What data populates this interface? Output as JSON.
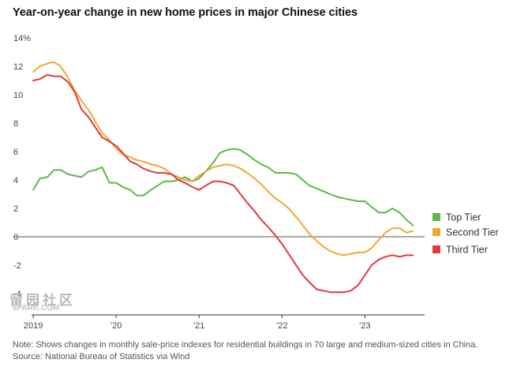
{
  "chart_data": {
    "type": "line",
    "title": "Year-on-year change in new home prices in major Chinese cities",
    "x_tick_labels": [
      "2019",
      "'20",
      "'21",
      "'22",
      "'23"
    ],
    "x_tick_values": [
      2019.0,
      2020.0,
      2021.0,
      2022.0,
      2023.0
    ],
    "xlim": [
      2018.98,
      2023.72
    ],
    "y_tick_labels": [
      "14%",
      "12",
      "10",
      "8",
      "6",
      "4",
      "2",
      "0",
      "-2",
      "-4"
    ],
    "y_tick_values": [
      14,
      12,
      10,
      8,
      6,
      4,
      2,
      0,
      -2,
      -4
    ],
    "ylim": [
      -5.5,
      14
    ],
    "grid": false,
    "legend_position": "right",
    "series": [
      {
        "name": "Top Tier",
        "color": "#5db84b",
        "x": [
          2019.0,
          2019.08,
          2019.17,
          2019.25,
          2019.33,
          2019.42,
          2019.5,
          2019.58,
          2019.67,
          2019.75,
          2019.83,
          2019.92,
          2020.0,
          2020.08,
          2020.17,
          2020.25,
          2020.33,
          2020.42,
          2020.5,
          2020.58,
          2020.67,
          2020.75,
          2020.83,
          2020.92,
          2021.0,
          2021.08,
          2021.17,
          2021.25,
          2021.33,
          2021.42,
          2021.5,
          2021.58,
          2021.67,
          2021.75,
          2021.83,
          2021.92,
          2022.0,
          2022.08,
          2022.17,
          2022.25,
          2022.33,
          2022.42,
          2022.5,
          2022.58,
          2022.67,
          2022.75,
          2022.83,
          2022.92,
          2023.0,
          2023.08,
          2023.17,
          2023.25,
          2023.33,
          2023.42,
          2023.5,
          2023.58
        ],
        "values": [
          3.3,
          4.1,
          4.2,
          4.7,
          4.7,
          4.4,
          4.3,
          4.2,
          4.6,
          4.7,
          4.9,
          3.8,
          3.8,
          3.5,
          3.3,
          2.9,
          2.9,
          3.3,
          3.6,
          3.9,
          3.9,
          4.0,
          4.2,
          3.9,
          4.1,
          4.6,
          5.2,
          5.9,
          6.1,
          6.2,
          6.1,
          5.8,
          5.4,
          5.1,
          4.9,
          4.5,
          4.5,
          4.5,
          4.4,
          4.0,
          3.6,
          3.4,
          3.2,
          3.0,
          2.8,
          2.7,
          2.6,
          2.5,
          2.5,
          2.1,
          1.7,
          1.7,
          2.0,
          1.7,
          1.2,
          0.8
        ]
      },
      {
        "name": "Second Tier",
        "color": "#f0a830",
        "x": [
          2019.0,
          2019.08,
          2019.17,
          2019.25,
          2019.33,
          2019.42,
          2019.5,
          2019.58,
          2019.67,
          2019.75,
          2019.83,
          2019.92,
          2020.0,
          2020.08,
          2020.17,
          2020.25,
          2020.33,
          2020.42,
          2020.5,
          2020.58,
          2020.67,
          2020.75,
          2020.83,
          2020.92,
          2021.0,
          2021.08,
          2021.17,
          2021.25,
          2021.33,
          2021.42,
          2021.5,
          2021.58,
          2021.67,
          2021.75,
          2021.83,
          2021.92,
          2022.0,
          2022.08,
          2022.17,
          2022.25,
          2022.33,
          2022.42,
          2022.5,
          2022.58,
          2022.67,
          2022.75,
          2022.83,
          2022.92,
          2023.0,
          2023.08,
          2023.17,
          2023.25,
          2023.33,
          2023.42,
          2023.5,
          2023.58
        ],
        "values": [
          11.6,
          12.0,
          12.2,
          12.3,
          12.0,
          11.2,
          10.3,
          9.6,
          8.9,
          8.1,
          7.3,
          6.8,
          6.2,
          5.8,
          5.6,
          5.4,
          5.3,
          5.1,
          5.0,
          4.8,
          4.4,
          4.2,
          4.0,
          3.9,
          4.3,
          4.6,
          4.9,
          5.0,
          5.1,
          5.0,
          4.8,
          4.5,
          4.1,
          3.7,
          3.2,
          2.7,
          2.4,
          2.0,
          1.4,
          0.8,
          0.2,
          -0.3,
          -0.7,
          -1.0,
          -1.2,
          -1.3,
          -1.2,
          -1.1,
          -1.1,
          -0.8,
          -0.2,
          0.3,
          0.6,
          0.6,
          0.3,
          0.4
        ]
      },
      {
        "name": "Third Tier",
        "color": "#e03a3a",
        "x": [
          2019.0,
          2019.08,
          2019.17,
          2019.25,
          2019.33,
          2019.42,
          2019.5,
          2019.58,
          2019.67,
          2019.75,
          2019.83,
          2019.92,
          2020.0,
          2020.08,
          2020.17,
          2020.25,
          2020.33,
          2020.42,
          2020.5,
          2020.58,
          2020.67,
          2020.75,
          2020.83,
          2020.92,
          2021.0,
          2021.08,
          2021.17,
          2021.25,
          2021.33,
          2021.42,
          2021.5,
          2021.58,
          2021.67,
          2021.75,
          2021.83,
          2021.92,
          2022.0,
          2022.08,
          2022.17,
          2022.25,
          2022.33,
          2022.42,
          2022.5,
          2022.58,
          2022.67,
          2022.75,
          2022.83,
          2022.92,
          2023.0,
          2023.08,
          2023.17,
          2023.25,
          2023.33,
          2023.42,
          2023.5,
          2023.58
        ],
        "values": [
          11.0,
          11.1,
          11.4,
          11.3,
          11.3,
          10.9,
          10.2,
          9.0,
          8.4,
          7.7,
          7.0,
          6.7,
          6.4,
          5.9,
          5.3,
          5.1,
          4.8,
          4.6,
          4.5,
          4.5,
          4.4,
          4.0,
          3.8,
          3.5,
          3.3,
          3.6,
          3.9,
          3.9,
          3.8,
          3.6,
          3.0,
          2.4,
          1.8,
          1.2,
          0.7,
          0.1,
          -0.5,
          -1.2,
          -2.0,
          -2.7,
          -3.2,
          -3.7,
          -3.8,
          -3.9,
          -3.9,
          -3.9,
          -3.8,
          -3.4,
          -2.7,
          -2.0,
          -1.6,
          -1.4,
          -1.3,
          -1.4,
          -1.3,
          -1.3
        ]
      }
    ]
  },
  "note": "Note: Shows changes in monthly sale-price indexes for residential buildings in 70 large and medium-sized cities in China.",
  "source": "Source: National Bureau of Statistics via Wind",
  "watermark": {
    "main": "留园社区",
    "sub": "6PARK.COM"
  }
}
